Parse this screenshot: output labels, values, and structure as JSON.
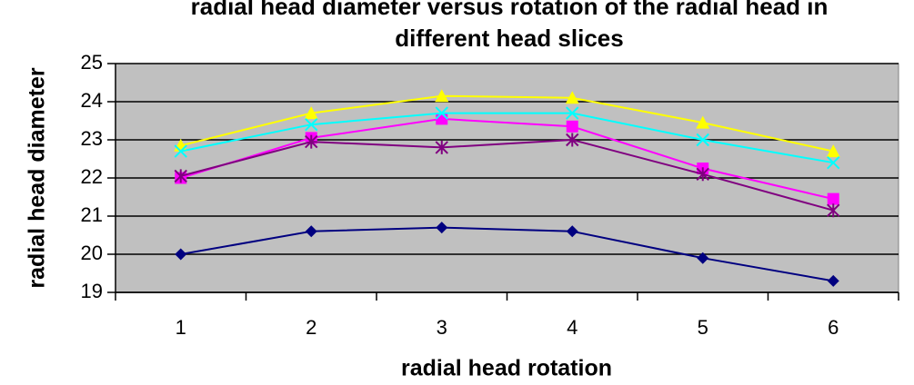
{
  "chart_data": {
    "type": "line",
    "title": "radial head diameter versus rotation of the radial head in different head slices",
    "x_label": "radial head rotation",
    "y_label": "radial head diameter",
    "categories": [
      1,
      2,
      3,
      4,
      5,
      6
    ],
    "ylim": [
      19,
      25
    ],
    "yticks": [
      19,
      20,
      21,
      22,
      23,
      24,
      25
    ],
    "grid": true,
    "plot_background": "#c0c0c0",
    "series": [
      {
        "color": "#000080",
        "marker": "diamond",
        "values": [
          20.0,
          20.6,
          20.7,
          20.6,
          19.9,
          19.3
        ]
      },
      {
        "color": "#ff00ff",
        "marker": "square",
        "values": [
          22.0,
          23.05,
          23.55,
          23.35,
          22.25,
          21.45
        ]
      },
      {
        "color": "#ffff00",
        "marker": "triangle",
        "values": [
          22.85,
          23.7,
          24.15,
          24.1,
          23.45,
          22.7
        ]
      },
      {
        "color": "#00ffff",
        "marker": "x",
        "values": [
          22.7,
          23.4,
          23.7,
          23.7,
          23.0,
          22.4
        ]
      },
      {
        "color": "#800080",
        "marker": "star",
        "values": [
          22.05,
          22.95,
          22.8,
          23.0,
          22.1,
          21.15
        ]
      }
    ]
  }
}
